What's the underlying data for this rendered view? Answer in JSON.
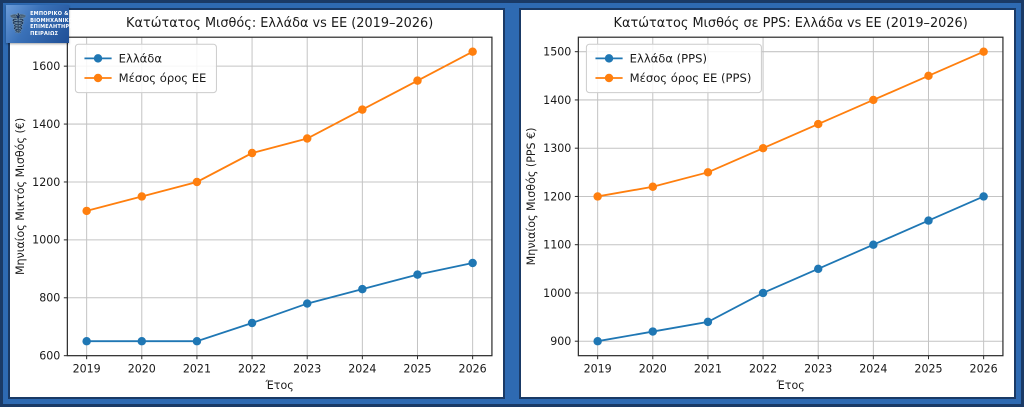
{
  "page": {
    "background_color": "#2e6ab2",
    "border_color": "#1a3a66",
    "panel_color": "#ffffff"
  },
  "logo": {
    "symbol": "caduceus",
    "lines": [
      "ΕΜΠΟΡΙΚΟ &",
      "ΒΙΟΜΗΧΑΝΙΚΟ",
      "ΕΠΙΜΕΛΗΤΗΡΙΟ",
      "ΠΕΙΡΑΙΩΣ"
    ]
  },
  "chart_data": [
    {
      "type": "line",
      "title": "Κατώτατος Μισθός: Ελλάδα vs ΕΕ (2019–2026)",
      "xlabel": "Έτος",
      "ylabel": "Μηνιαίος Μικτός Μισθός (€)",
      "x": [
        2019,
        2020,
        2021,
        2022,
        2023,
        2024,
        2025,
        2026
      ],
      "series": [
        {
          "name": "Ελλάδα",
          "color": "#1f77b4",
          "values": [
            650,
            650,
            650,
            713,
            780,
            830,
            880,
            920
          ]
        },
        {
          "name": "Μέσος όρος ΕΕ",
          "color": "#ff7f0e",
          "values": [
            1100,
            1150,
            1200,
            1300,
            1350,
            1450,
            1550,
            1650
          ]
        }
      ],
      "xlim": [
        2018.65,
        2026.35
      ],
      "ylim": [
        600,
        1700
      ],
      "yticks": [
        600,
        800,
        1000,
        1200,
        1400,
        1600
      ],
      "grid": true,
      "legend_position": "upper-left",
      "marker": "circle"
    },
    {
      "type": "line",
      "title": "Κατώτατος Μισθός σε PPS: Ελλάδα vs ΕΕ (2019–2026)",
      "xlabel": "Έτος",
      "ylabel": "Μηνιαίος Μισθός (PPS €)",
      "x": [
        2019,
        2020,
        2021,
        2022,
        2023,
        2024,
        2025,
        2026
      ],
      "series": [
        {
          "name": "Ελλάδα (PPS)",
          "color": "#1f77b4",
          "values": [
            900,
            920,
            940,
            1000,
            1050,
            1100,
            1150,
            1200
          ]
        },
        {
          "name": "Μέσος όρος ΕΕ (PPS)",
          "color": "#ff7f0e",
          "values": [
            1200,
            1220,
            1250,
            1300,
            1350,
            1400,
            1450,
            1500
          ]
        }
      ],
      "xlim": [
        2018.65,
        2026.35
      ],
      "ylim": [
        870,
        1530
      ],
      "yticks": [
        900,
        1000,
        1100,
        1200,
        1300,
        1400,
        1500
      ],
      "grid": true,
      "legend_position": "upper-left",
      "marker": "circle"
    }
  ]
}
